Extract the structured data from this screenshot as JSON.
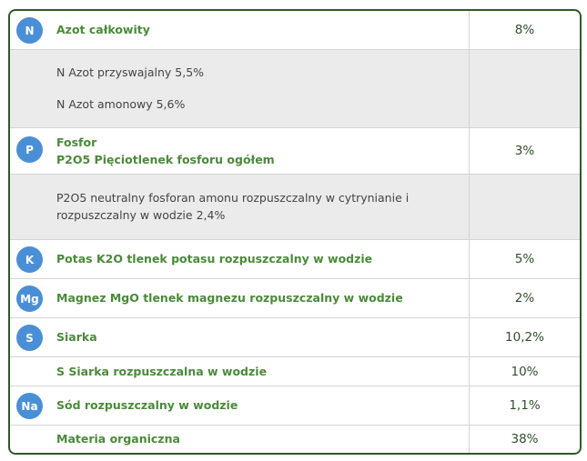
{
  "table": {
    "rows": [
      {
        "badge": "N",
        "lines": [
          "Azot całkowity"
        ],
        "value": "8%"
      },
      {
        "lines": [
          "N Azot przyswajalny 5,5%",
          "N Azot amonowy 5,6%"
        ]
      },
      {
        "badge": "P",
        "lines": [
          "Fosfor",
          "P2O5 Pięciotlenek fosforu ogółem"
        ],
        "value": "3%"
      },
      {
        "lines": [
          "P2O5 neutralny fosforan amonu rozpuszczalny w cytrynianie i",
          "rozpuszczalny w wodzie 2,4%"
        ]
      },
      {
        "badge": "K",
        "lines": [
          "Potas K2O tlenek potasu rozpuszczalny w wodzie"
        ],
        "value": "5%"
      },
      {
        "badge": "Mg",
        "lines": [
          "Magnez MgO tlenek magnezu rozpuszczalny w wodzie"
        ],
        "value": "2%"
      },
      {
        "badge": "S",
        "lines": [
          "Siarka"
        ],
        "value": "10,2%"
      },
      {
        "lines": [
          "S Siarka rozpuszczalna w wodzie"
        ],
        "value": "10%"
      },
      {
        "badge": "Na",
        "lines": [
          "Sód rozpuszczalny w wodzie"
        ],
        "value": "1,1%"
      },
      {
        "lines": [
          "Materia organiczna"
        ],
        "value": "38%"
      }
    ]
  }
}
